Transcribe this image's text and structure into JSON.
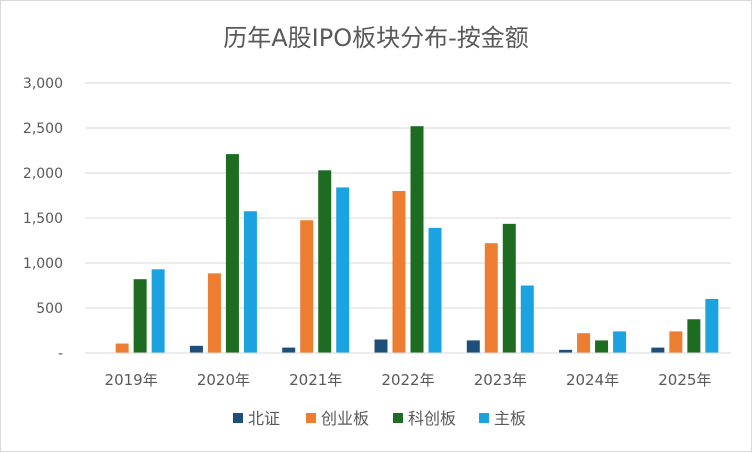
{
  "chart_data": {
    "type": "bar",
    "title": "历年A股IPO板块分布-按金额",
    "xlabel": "",
    "ylabel": "",
    "ylim": [
      0,
      3000
    ],
    "yticks": [
      {
        "value": 0,
        "label": "-"
      },
      {
        "value": 500,
        "label": "500"
      },
      {
        "value": 1000,
        "label": "1,000"
      },
      {
        "value": 1500,
        "label": "1,500"
      },
      {
        "value": 2000,
        "label": "2,000"
      },
      {
        "value": 2500,
        "label": "2,500"
      },
      {
        "value": 3000,
        "label": "3,000"
      }
    ],
    "grid": true,
    "legend_position": "bottom",
    "categories": [
      "2019年",
      "2020年",
      "2021年",
      "2022年",
      "2023年",
      "2024年",
      "2025年"
    ],
    "series": [
      {
        "name": "北证",
        "color": "#1f4e79",
        "values": [
          0,
          80,
          60,
          150,
          140,
          35,
          60
        ]
      },
      {
        "name": "创业板",
        "color": "#ed7d31",
        "values": [
          105,
          885,
          1475,
          1800,
          1220,
          220,
          240
        ]
      },
      {
        "name": "科创板",
        "color": "#1e6b22",
        "values": [
          820,
          2210,
          2030,
          2520,
          1435,
          140,
          375
        ]
      },
      {
        "name": "主板",
        "color": "#1aa3e0",
        "values": [
          930,
          1575,
          1840,
          1390,
          750,
          240,
          600
        ]
      }
    ]
  }
}
